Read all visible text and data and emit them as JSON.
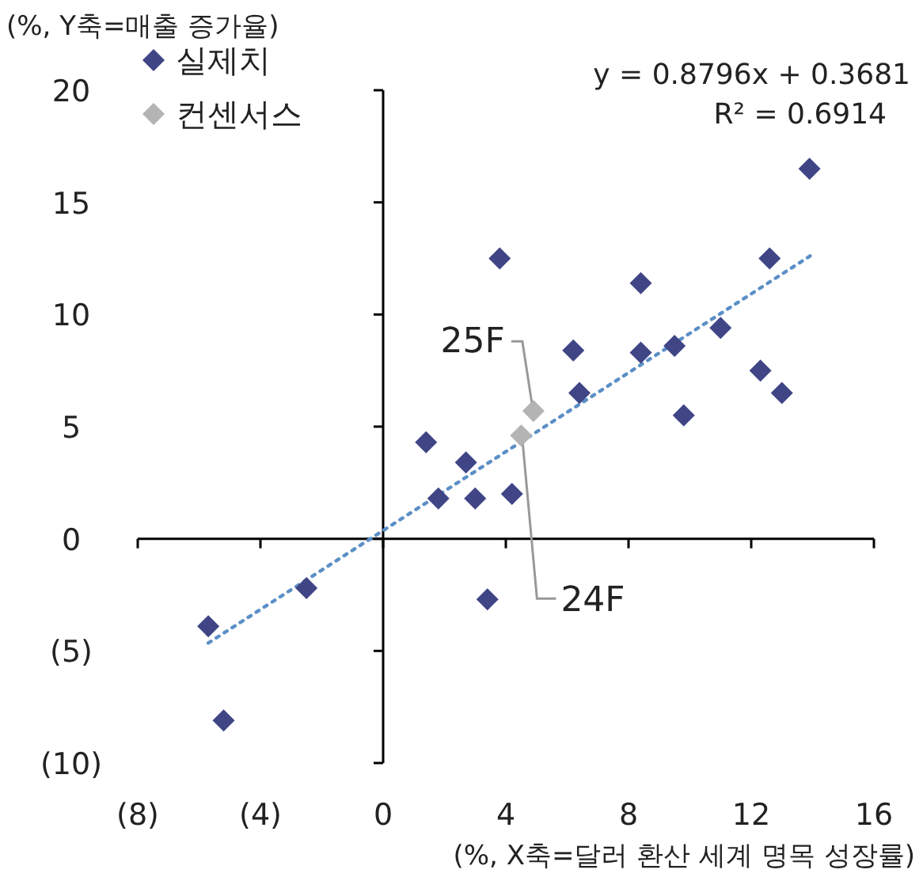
{
  "chart_data": {
    "type": "scatter",
    "ylabel": "(%, Y축=매출 증가율)",
    "xlabel": "(%, X축=달러 환산 세계 명목 성장률)",
    "xlim": [
      -8,
      16
    ],
    "ylim": [
      -10,
      20
    ],
    "xticks": [
      {
        "value": -8,
        "label": "(8)"
      },
      {
        "value": -4,
        "label": "(4)"
      },
      0,
      4,
      8,
      12,
      16
    ],
    "yticks": [
      {
        "value": -10,
        "label": "(10)"
      },
      {
        "value": -5,
        "label": "(5)"
      },
      0,
      5,
      10,
      15,
      20
    ],
    "legend": "top left",
    "marker": "diamond",
    "series": [
      {
        "name": "실제치",
        "color": "#3f4585",
        "x": [
          -5.7,
          -5.2,
          -2.5,
          1.4,
          1.8,
          2.7,
          3.0,
          4.2,
          3.8,
          3.4,
          6.2,
          6.4,
          8.4,
          8.4,
          9.5,
          9.8,
          11.0,
          12.3,
          12.6,
          13.0,
          13.9
        ],
        "values": [
          -3.9,
          -8.1,
          -2.2,
          4.3,
          1.8,
          3.4,
          1.8,
          2.0,
          12.5,
          -2.7,
          8.4,
          6.5,
          11.4,
          8.3,
          8.6,
          5.5,
          9.4,
          7.5,
          12.5,
          6.5,
          16.5
        ]
      },
      {
        "name": "컨센서스",
        "color": "#b4b4b4",
        "x": [
          4.5,
          4.9
        ],
        "values": [
          4.6,
          5.7
        ]
      },
      {
        "type": "line",
        "line_style": "dotted",
        "marker": "none",
        "color": "#5b8fc6",
        "x": [
          -5.7,
          14
        ],
        "values": [
          -4.65,
          12.68
        ]
      }
    ],
    "annotations": [
      "y = 0.8796x + 0.3681",
      "R² = 0.6914",
      {
        "text": "25F",
        "x": 4.9,
        "y": 5.7
      },
      {
        "text": "24F",
        "x": 4.5,
        "y": 4.6
      }
    ]
  }
}
